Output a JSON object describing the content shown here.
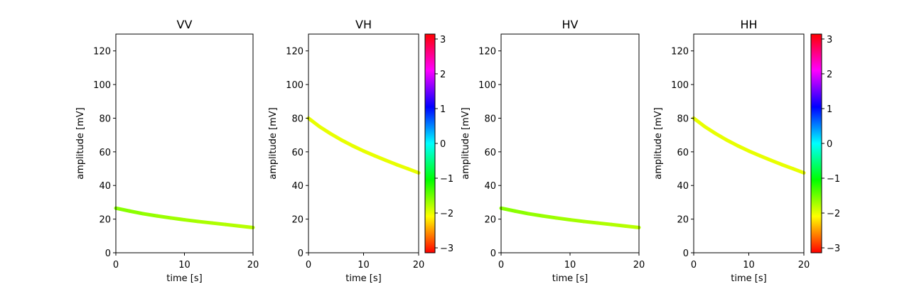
{
  "chart_data": [
    {
      "type": "line",
      "title": "VV",
      "xlabel": "time [s]",
      "ylabel": "amplitude [mV]",
      "xlim": [
        0,
        20
      ],
      "ylim": [
        0,
        130
      ],
      "xticks": [
        0,
        10,
        20
      ],
      "yticks": [
        0,
        20,
        40,
        60,
        80,
        100,
        120
      ],
      "colorbar": false,
      "series": [
        {
          "x": [
            0,
            2,
            4,
            6,
            8,
            10,
            12,
            14,
            16,
            18,
            20
          ],
          "y": [
            26.5,
            24.8,
            23.2,
            21.9,
            20.7,
            19.6,
            18.6,
            17.7,
            16.8,
            15.9,
            15.0
          ],
          "color_value": [
            -1.6,
            -1.62,
            -1.65,
            -1.68,
            -1.7,
            -1.72,
            -1.74,
            -1.76,
            -1.78,
            -1.8,
            -1.82
          ]
        }
      ]
    },
    {
      "type": "line",
      "title": "VH",
      "xlabel": "time [s]",
      "ylabel": "amplitude [mV]",
      "xlim": [
        0,
        20
      ],
      "ylim": [
        0,
        130
      ],
      "xticks": [
        0,
        10,
        20
      ],
      "yticks": [
        0,
        20,
        40,
        60,
        80,
        100,
        120
      ],
      "colorbar": true,
      "series": [
        {
          "x": [
            0,
            2,
            4,
            6,
            8,
            10,
            12,
            14,
            16,
            18,
            20
          ],
          "y": [
            80.0,
            75.0,
            70.8,
            67.0,
            63.6,
            60.5,
            57.7,
            55.0,
            52.4,
            50.0,
            47.5
          ],
          "color_value": [
            -2.0,
            -2.0,
            -2.0,
            -2.0,
            -2.0,
            -2.0,
            -2.0,
            -2.0,
            -2.0,
            -2.0,
            -2.0
          ]
        }
      ]
    },
    {
      "type": "line",
      "title": "HV",
      "xlabel": "time [s]",
      "ylabel": "amplitude [mV]",
      "xlim": [
        0,
        20
      ],
      "ylim": [
        0,
        130
      ],
      "xticks": [
        0,
        10,
        20
      ],
      "yticks": [
        0,
        20,
        40,
        60,
        80,
        100,
        120
      ],
      "colorbar": false,
      "series": [
        {
          "x": [
            0,
            2,
            4,
            6,
            8,
            10,
            12,
            14,
            16,
            18,
            20
          ],
          "y": [
            26.5,
            24.8,
            23.2,
            21.9,
            20.7,
            19.6,
            18.6,
            17.7,
            16.8,
            15.9,
            15.0
          ],
          "color_value": [
            -1.6,
            -1.62,
            -1.65,
            -1.68,
            -1.7,
            -1.72,
            -1.74,
            -1.76,
            -1.78,
            -1.8,
            -1.82
          ]
        }
      ]
    },
    {
      "type": "line",
      "title": "HH",
      "xlabel": "time [s]",
      "ylabel": "amplitude [mV]",
      "xlim": [
        0,
        20
      ],
      "ylim": [
        0,
        130
      ],
      "xticks": [
        0,
        10,
        20
      ],
      "yticks": [
        0,
        20,
        40,
        60,
        80,
        100,
        120
      ],
      "colorbar": true,
      "series": [
        {
          "x": [
            0,
            2,
            4,
            6,
            8,
            10,
            12,
            14,
            16,
            18,
            20
          ],
          "y": [
            80.0,
            75.0,
            70.8,
            67.0,
            63.6,
            60.5,
            57.7,
            55.0,
            52.4,
            50.0,
            47.5
          ],
          "color_value": [
            -2.0,
            -2.0,
            -2.0,
            -2.0,
            -2.0,
            -2.0,
            -2.0,
            -2.0,
            -2.0,
            -2.0,
            -2.0
          ]
        }
      ]
    }
  ],
  "colorbar": {
    "range": [
      -3.14159,
      3.14159
    ],
    "ticks": [
      -3,
      -2,
      -1,
      0,
      1,
      2,
      3
    ],
    "tick_labels": [
      "−3",
      "−2",
      "−1",
      "0",
      "1",
      "2",
      "3"
    ],
    "colormap": "hsv"
  }
}
